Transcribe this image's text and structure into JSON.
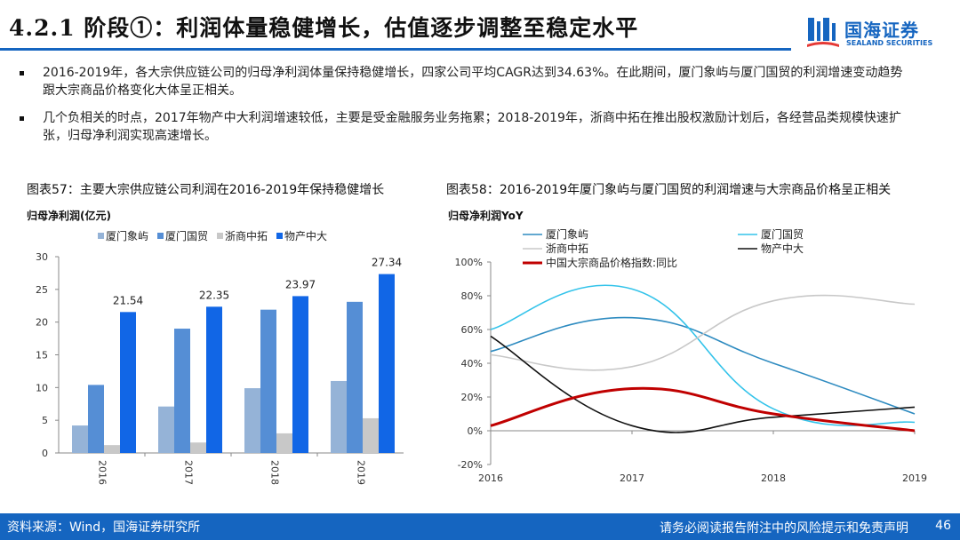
{
  "header": {
    "title": "4.2.1 阶段①：利润体量稳健增长，估值逐步调整至稳定水平",
    "logo_cn": "国海证券",
    "logo_en": "SEALAND SECURITIES"
  },
  "bullets": [
    "2016-2019年，各大宗供应链公司的归母净利润体量保持稳健增长，四家公司平均CAGR达到34.63%。在此期间，厦门象屿与厦门国贸的利润增速变动趋势跟大宗商品价格变化大体呈正相关。",
    "几个负相关的时点，2017年物产中大利润增速较低，主要是受金融服务业务拖累；2018-2019年，浙商中拓在推出股权激励计划后，各经营品类规模快速扩张，归母净利润实现高速增长。"
  ],
  "chart_left_title": "图表57：主要大宗供应链公司利润在2016-2019年保持稳健增长",
  "chart_right_title": "图表58：2016-2019年厦门象屿与厦门国贸的利润增速与大宗商品价格呈正相关",
  "chart_data": [
    {
      "type": "bar",
      "title": "图表57：主要大宗供应链公司利润在2016-2019年保持稳健增长",
      "ylabel": "归母净利润(亿元)",
      "xlabel": "",
      "categories": [
        "2016",
        "2017",
        "2018",
        "2019"
      ],
      "ylim": [
        0,
        30
      ],
      "yticks": [
        0,
        5,
        10,
        15,
        20,
        25,
        30
      ],
      "legend_position": "top",
      "series": [
        {
          "name": "厦门象屿",
          "color": "#95b3d7",
          "values": [
            4.2,
            7.1,
            9.9,
            11.0
          ]
        },
        {
          "name": "厦门国贸",
          "color": "#558ed5",
          "values": [
            10.4,
            19.0,
            21.9,
            23.1
          ]
        },
        {
          "name": "浙商中拓",
          "color": "#c8c8c8",
          "values": [
            1.2,
            1.6,
            3.0,
            5.3
          ]
        },
        {
          "name": "物产中大",
          "color": "#1166e6",
          "values": [
            21.54,
            22.35,
            23.97,
            27.34
          ],
          "labels": [
            "21.54",
            "22.35",
            "23.97",
            "27.34"
          ]
        }
      ]
    },
    {
      "type": "line",
      "title": "图表58：2016-2019年厦门象屿与厦门国贸的利润增速与大宗商品价格呈正相关",
      "ylabel": "归母净利润YoY",
      "xlabel": "",
      "categories": [
        "2016",
        "2017",
        "2018",
        "2019"
      ],
      "ylim": [
        -20,
        100
      ],
      "yticks": [
        -20,
        0,
        20,
        40,
        60,
        80,
        100
      ],
      "yticklabels": [
        "-20%",
        "0%",
        "20%",
        "40%",
        "60%",
        "80%",
        "100%"
      ],
      "legend_position": "top",
      "series": [
        {
          "name": "厦门象屿",
          "color": "#2e8bc0",
          "width": 1.6,
          "values": [
            47,
            67,
            40,
            10
          ]
        },
        {
          "name": "厦门国贸",
          "color": "#33c3ea",
          "width": 1.6,
          "values": [
            60,
            84,
            13,
            5
          ]
        },
        {
          "name": "浙商中拓",
          "color": "#c8c8c8",
          "width": 1.6,
          "values": [
            45,
            38,
            77,
            75
          ]
        },
        {
          "name": "物产中大",
          "color": "#111111",
          "width": 1.6,
          "values": [
            56,
            3,
            8,
            14
          ]
        },
        {
          "name": "中国大宗商品价格指数:同比",
          "color": "#c00000",
          "width": 3,
          "values": [
            3,
            25,
            10,
            0
          ]
        }
      ]
    }
  ],
  "footer": {
    "source": "资料来源：Wind，国海证券研究所",
    "disclaimer": "请务必阅读报告附注中的风险提示和免责声明",
    "page": "46"
  }
}
